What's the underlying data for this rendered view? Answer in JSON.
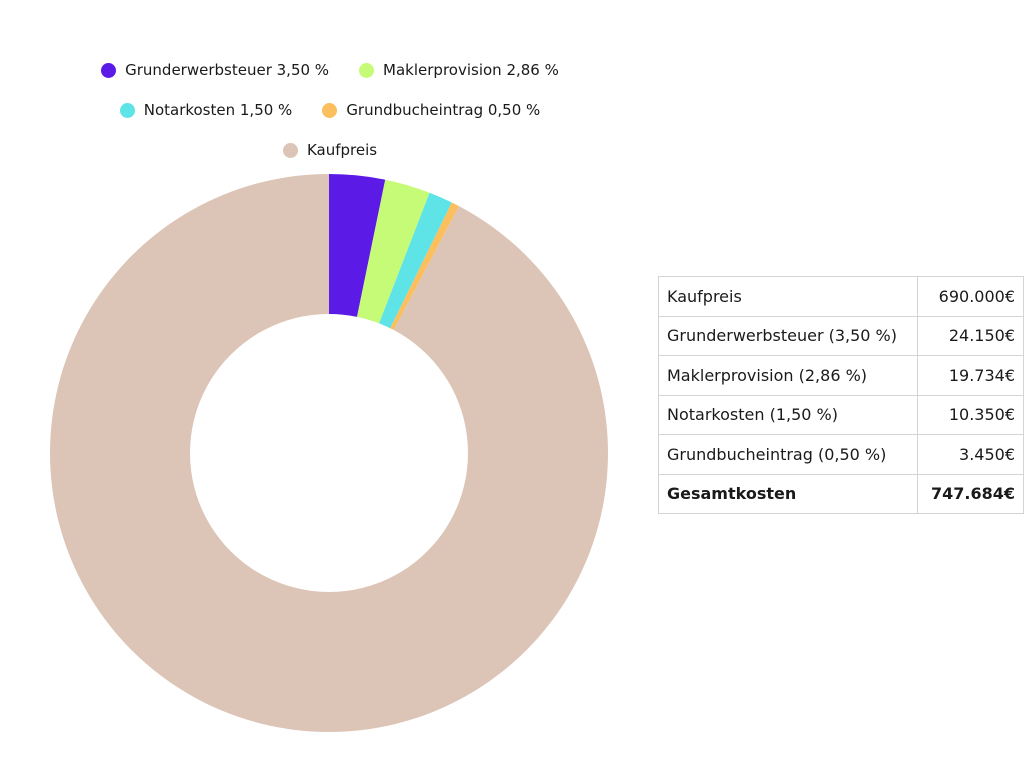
{
  "legend": {
    "rows": [
      [
        {
          "label": "Grunderwerbsteuer 3,50 %",
          "color": "#5b1ae6"
        },
        {
          "label": "Maklerprovision 2,86 %",
          "color": "#c6fb78"
        }
      ],
      [
        {
          "label": "Notarkosten 1,50 %",
          "color": "#5ee3e7"
        },
        {
          "label": "Grundbucheintrag 0,50 %",
          "color": "#fbbf5e"
        }
      ],
      [
        {
          "label": "Kaufpreis",
          "color": "#dcc5b6"
        }
      ]
    ]
  },
  "chart_data": {
    "type": "pie",
    "variant": "donut",
    "slices": [
      {
        "name": "Grunderwerbsteuer",
        "value": 24150,
        "color": "#5b1ae6"
      },
      {
        "name": "Maklerprovision",
        "value": 19734,
        "color": "#c6fb78"
      },
      {
        "name": "Notarkosten",
        "value": 10350,
        "color": "#5ee3e7"
      },
      {
        "name": "Grundbucheintrag",
        "value": 3450,
        "color": "#fbbf5e"
      },
      {
        "name": "Kaufpreis",
        "value": 690000,
        "color": "#dcc5b6"
      }
    ],
    "legend_position": "top"
  },
  "table": {
    "rows": [
      {
        "label": "Kaufpreis",
        "value": "690.000€"
      },
      {
        "label": "Grunderwerbsteuer (3,50 %)",
        "value": "24.150€"
      },
      {
        "label": "Maklerprovision (2,86 %)",
        "value": "19.734€"
      },
      {
        "label": "Notarkosten (1,50 %)",
        "value": "10.350€"
      },
      {
        "label": "Grundbucheintrag (0,50 %)",
        "value": "3.450€"
      }
    ],
    "total": {
      "label": "Gesamtkosten",
      "value": "747.684€"
    }
  }
}
